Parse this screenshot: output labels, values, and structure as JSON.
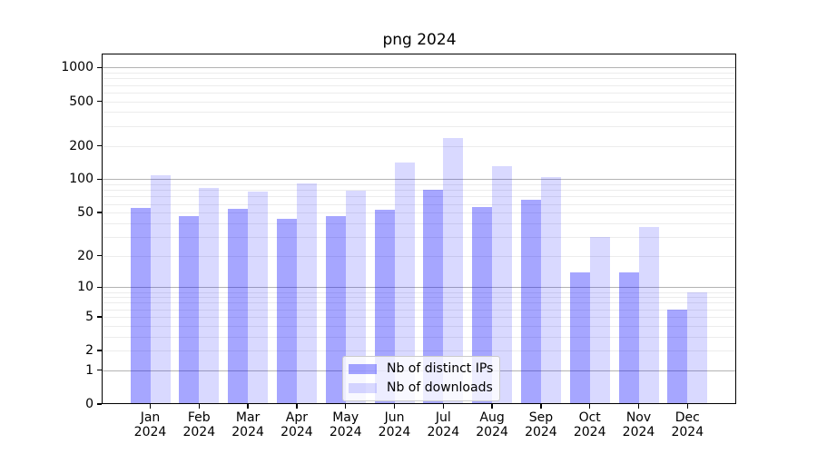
{
  "title": "png 2024",
  "legend": {
    "position": "lower center",
    "items": [
      {
        "label": "Nb of distinct IPs",
        "color": "rgba(0,0,255,0.35)"
      },
      {
        "label": "Nb of downloads",
        "color": "rgba(0,0,255,0.15)"
      }
    ]
  },
  "chart_data": {
    "type": "bar",
    "title": "png 2024",
    "categories": [
      "Jan",
      "Feb",
      "Mar",
      "Apr",
      "May",
      "Jun",
      "Jul",
      "Aug",
      "Sep",
      "Oct",
      "Nov",
      "Dec"
    ],
    "year_label": "2024",
    "series": [
      {
        "name": "Nb of distinct IPs",
        "color": "rgba(0,0,255,0.35)",
        "values": [
          55,
          46,
          54,
          44,
          46,
          53,
          81,
          56,
          65,
          14,
          14,
          6
        ]
      },
      {
        "name": "Nb of downloads",
        "color": "rgba(0,0,255,0.15)",
        "values": [
          108,
          83,
          77,
          91,
          79,
          141,
          236,
          132,
          104,
          30,
          37,
          9
        ]
      }
    ],
    "xlabel": "",
    "ylabel": "",
    "y_axis": {
      "scale": "log1p",
      "tick_values": [
        0,
        1,
        2,
        5,
        10,
        20,
        50,
        100,
        200,
        500,
        1000
      ],
      "range": [
        0,
        1300
      ],
      "major_gridlines": [
        1,
        10,
        100,
        1000
      ],
      "minor_gridlines": [
        2,
        3,
        4,
        5,
        6,
        7,
        8,
        9,
        20,
        30,
        40,
        50,
        60,
        70,
        80,
        90,
        200,
        300,
        400,
        500,
        600,
        700,
        800,
        900
      ]
    },
    "grid": "on",
    "legend_position": "lower center"
  },
  "colors": {
    "bar_ips": "rgba(0,0,255,0.35)",
    "bar_downloads": "rgba(0,0,255,0.15)",
    "major_grid": "#b3b3b3",
    "minor_grid": "#ececec",
    "spine": "#000000",
    "legend_border": "#cccccc",
    "background": "#ffffff"
  }
}
